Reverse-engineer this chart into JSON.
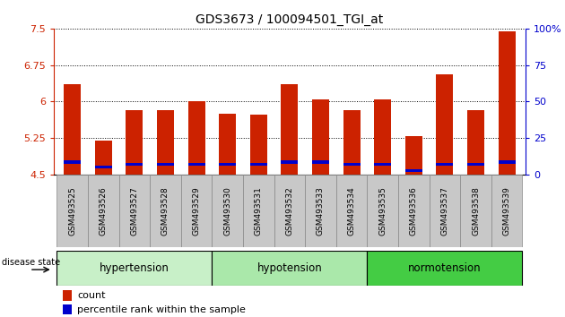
{
  "title": "GDS3673 / 100094501_TGI_at",
  "samples": [
    "GSM493525",
    "GSM493526",
    "GSM493527",
    "GSM493528",
    "GSM493529",
    "GSM493530",
    "GSM493531",
    "GSM493532",
    "GSM493533",
    "GSM493534",
    "GSM493535",
    "GSM493536",
    "GSM493537",
    "GSM493538",
    "GSM493539"
  ],
  "red_values": [
    6.35,
    5.2,
    5.82,
    5.82,
    6.0,
    5.75,
    5.72,
    6.35,
    6.05,
    5.82,
    6.05,
    5.28,
    6.55,
    5.82,
    7.45
  ],
  "blue_values": [
    4.72,
    4.62,
    4.68,
    4.68,
    4.68,
    4.68,
    4.68,
    4.72,
    4.72,
    4.68,
    4.68,
    4.55,
    4.68,
    4.68,
    4.72
  ],
  "blue_heights": [
    0.07,
    0.06,
    0.06,
    0.06,
    0.06,
    0.06,
    0.06,
    0.07,
    0.07,
    0.06,
    0.06,
    0.06,
    0.06,
    0.06,
    0.07
  ],
  "ymin": 4.5,
  "ymax": 7.5,
  "yticks_left": [
    4.5,
    5.25,
    6.0,
    6.75,
    7.5
  ],
  "ytick_labels_left": [
    "4.5",
    "5.25",
    "6",
    "6.75",
    "7.5"
  ],
  "yticks_right": [
    0,
    25,
    50,
    75,
    100
  ],
  "ytick_labels_right": [
    "0",
    "25",
    "50",
    "75",
    "100%"
  ],
  "group_labels": [
    "hypertension",
    "hypotension",
    "normotension"
  ],
  "group_starts": [
    0,
    5,
    10
  ],
  "group_ends": [
    5,
    10,
    15
  ],
  "group_colors": [
    "#c8f0c8",
    "#aae8aa",
    "#44cc44"
  ],
  "bar_color": "#cc2200",
  "blue_color": "#0000cc",
  "bar_width": 0.55,
  "tick_color_left": "#cc2200",
  "tick_color_right": "#0000cc",
  "xlabel_bg_color": "#c8c8c8",
  "xlabel_border_color": "#888888",
  "disease_state_label": "disease state",
  "legend_count": "count",
  "legend_percentile": "percentile rank within the sample",
  "bg_color": "#ffffff"
}
